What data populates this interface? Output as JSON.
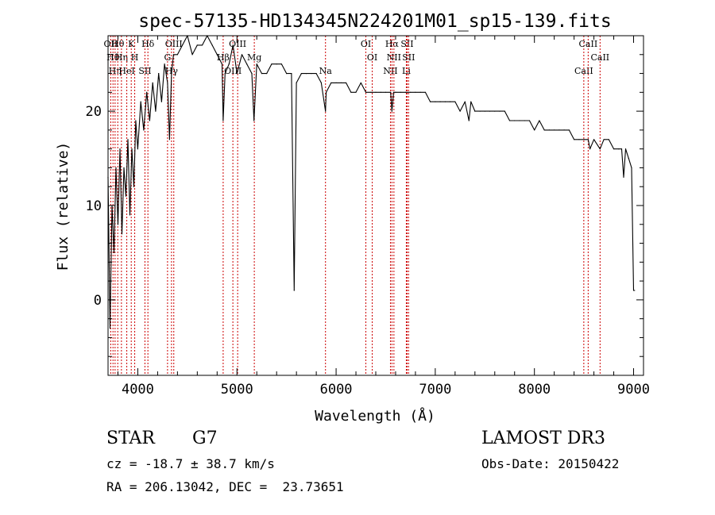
{
  "chart_data": {
    "type": "line",
    "title": "spec-57135-HD134345N224201M01_sp15-139.fits",
    "xlabel": "Wavelength (Å)",
    "ylabel": "Flux (relative)",
    "xlim": [
      3700,
      9100
    ],
    "ylim": [
      -8,
      28
    ],
    "x_ticks": [
      4000,
      5000,
      6000,
      7000,
      8000,
      9000
    ],
    "y_ticks": [
      0,
      10,
      20
    ],
    "series": [
      {
        "name": "flux",
        "x": [
          3700,
          3720,
          3740,
          3760,
          3780,
          3800,
          3820,
          3840,
          3860,
          3880,
          3900,
          3920,
          3940,
          3960,
          3980,
          4000,
          4030,
          4060,
          4090,
          4120,
          4150,
          4180,
          4210,
          4240,
          4270,
          4300,
          4320,
          4340,
          4360,
          4400,
          4450,
          4500,
          4550,
          4600,
          4650,
          4700,
          4750,
          4800,
          4850,
          4861,
          4880,
          4920,
          4960,
          5000,
          5050,
          5100,
          5150,
          5172,
          5200,
          5250,
          5300,
          5350,
          5400,
          5450,
          5500,
          5550,
          5577,
          5600,
          5650,
          5700,
          5750,
          5800,
          5850,
          5893,
          5900,
          5950,
          6000,
          6050,
          6100,
          6150,
          6200,
          6250,
          6300,
          6350,
          6400,
          6450,
          6500,
          6550,
          6563,
          6580,
          6600,
          6650,
          6700,
          6750,
          6800,
          6850,
          6900,
          6950,
          7000,
          7050,
          7100,
          7150,
          7200,
          7250,
          7300,
          7340,
          7360,
          7400,
          7450,
          7500,
          7550,
          7600,
          7650,
          7700,
          7750,
          7800,
          7850,
          7900,
          7950,
          8000,
          8050,
          8100,
          8150,
          8200,
          8250,
          8300,
          8350,
          8400,
          8450,
          8500,
          8542,
          8560,
          8600,
          8662,
          8700,
          8750,
          8800,
          8850,
          8880,
          8900,
          8920,
          8950,
          8980,
          9000,
          9010
        ],
        "values": [
          13,
          -3,
          10,
          5,
          14,
          8,
          16,
          7,
          14,
          11,
          17,
          9,
          16,
          12,
          19,
          16,
          21,
          18,
          22,
          19,
          23,
          20,
          24,
          21,
          25,
          23,
          17,
          24,
          26,
          26,
          27,
          28,
          26,
          27,
          27,
          28,
          27,
          26,
          25,
          19,
          24,
          25,
          27,
          24,
          26,
          25,
          24,
          19,
          25,
          24,
          24,
          25,
          25,
          25,
          24,
          24,
          1,
          23,
          24,
          24,
          24,
          24,
          23,
          20,
          22,
          23,
          23,
          23,
          23,
          22,
          22,
          23,
          22,
          22,
          22,
          22,
          22,
          22,
          20,
          22,
          22,
          22,
          22,
          22,
          22,
          22,
          22,
          21,
          21,
          21,
          21,
          21,
          21,
          20,
          21,
          19,
          21,
          20,
          20,
          20,
          20,
          20,
          20,
          20,
          19,
          19,
          19,
          19,
          19,
          18,
          19,
          18,
          18,
          18,
          18,
          18,
          18,
          17,
          17,
          17,
          17,
          16,
          17,
          16,
          17,
          17,
          16,
          16,
          16,
          13,
          16,
          15,
          14,
          1,
          1
        ]
      }
    ],
    "line_markers": [
      {
        "wavelength": 3727,
        "label": "OII"
      },
      {
        "wavelength": 3750,
        "label": "Hθ"
      },
      {
        "wavelength": 3771,
        "label": "Hη"
      },
      {
        "wavelength": 3798,
        "label": "Hθ"
      },
      {
        "wavelength": 3835,
        "label": "Hη"
      },
      {
        "wavelength": 3889,
        "label": "HeI"
      },
      {
        "wavelength": 3934,
        "label": "K"
      },
      {
        "wavelength": 3969,
        "label": "H"
      },
      {
        "wavelength": 4072,
        "label": "SII"
      },
      {
        "wavelength": 4102,
        "label": "Hδ"
      },
      {
        "wavelength": 4300,
        "label": "G"
      },
      {
        "wavelength": 4340,
        "label": "Hγ"
      },
      {
        "wavelength": 4363,
        "label": "OIII"
      },
      {
        "wavelength": 4861,
        "label": "Hβ"
      },
      {
        "wavelength": 4959,
        "label": "OIII"
      },
      {
        "wavelength": 5007,
        "label": "OIII"
      },
      {
        "wavelength": 5175,
        "label": "Mg"
      },
      {
        "wavelength": 5893,
        "label": "Na"
      },
      {
        "wavelength": 6300,
        "label": "OI"
      },
      {
        "wavelength": 6364,
        "label": "OI"
      },
      {
        "wavelength": 6548,
        "label": "NII"
      },
      {
        "wavelength": 6563,
        "label": "Hα"
      },
      {
        "wavelength": 6583,
        "label": "NII"
      },
      {
        "wavelength": 6708,
        "label": "Li"
      },
      {
        "wavelength": 6716,
        "label": "SII"
      },
      {
        "wavelength": 6731,
        "label": "SII"
      },
      {
        "wavelength": 8498,
        "label": "CaII"
      },
      {
        "wavelength": 8542,
        "label": "CaII"
      },
      {
        "wavelength": 8662,
        "label": "CaII"
      }
    ]
  },
  "info": {
    "object_type": "STAR",
    "subclass": "G7",
    "survey": "LAMOST DR3",
    "cz": "cz = -18.7 ± 38.7 km/s",
    "obs_date": "Obs-Date: 20150422",
    "coords": "RA = 206.13042, DEC =  23.73651"
  }
}
